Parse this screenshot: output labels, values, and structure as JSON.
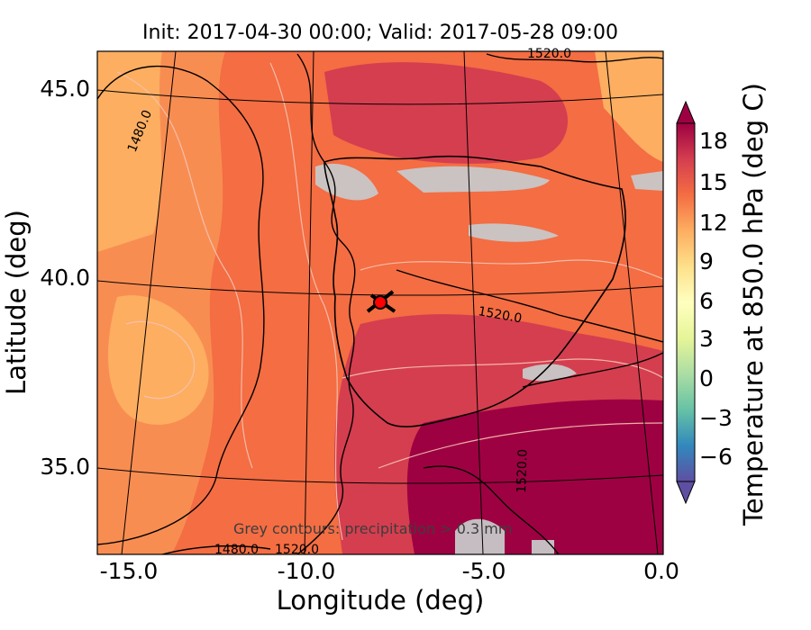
{
  "map": {
    "title": "Init: 2017-04-30 00:00; Valid: 2017-05-28 09:00",
    "xlabel": "Longitude (deg)",
    "ylabel": "Latitude (deg)",
    "xticks": [
      "-15.0",
      "-10.0",
      "-5.0",
      "0.0"
    ],
    "yticks": [
      "45.0",
      "40.0",
      "35.0"
    ],
    "note": "Grey contours: precipitation > 0.3 mm",
    "contour_labels": [
      "1520.0",
      "1480.0",
      "1520.0",
      "1520.0",
      "1480.0",
      "1520.0"
    ],
    "marker_color": "#ff0000"
  },
  "colorbar": {
    "label": "Temperature at 850.0 hPa (deg C)",
    "ticks": [
      "18",
      "15",
      "12",
      "9",
      "6",
      "3",
      "0",
      "−3",
      "−6"
    ],
    "colormap": "Spectral_r",
    "colors": [
      "#5e4fa2",
      "#3288bd",
      "#66c2a5",
      "#abdda4",
      "#e6f598",
      "#ffffbf",
      "#fee08b",
      "#fdae61",
      "#f46d43",
      "#d53e4f",
      "#9e0142"
    ]
  }
}
